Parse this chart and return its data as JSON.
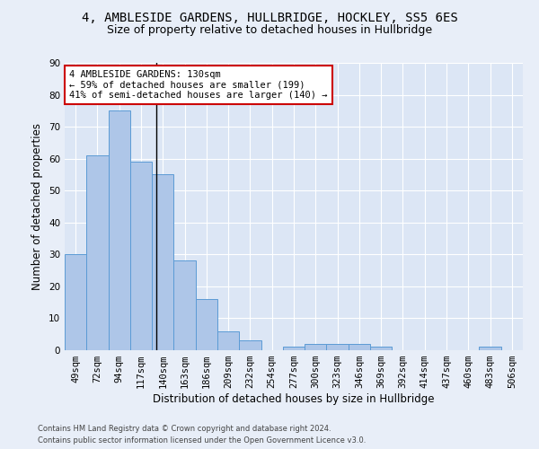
{
  "title": "4, AMBLESIDE GARDENS, HULLBRIDGE, HOCKLEY, SS5 6ES",
  "subtitle": "Size of property relative to detached houses in Hullbridge",
  "xlabel": "Distribution of detached houses by size in Hullbridge",
  "ylabel": "Number of detached properties",
  "categories": [
    "49sqm",
    "72sqm",
    "94sqm",
    "117sqm",
    "140sqm",
    "163sqm",
    "186sqm",
    "209sqm",
    "232sqm",
    "254sqm",
    "277sqm",
    "300sqm",
    "323sqm",
    "346sqm",
    "369sqm",
    "392sqm",
    "414sqm",
    "437sqm",
    "460sqm",
    "483sqm",
    "506sqm"
  ],
  "values": [
    30,
    61,
    75,
    59,
    55,
    28,
    16,
    6,
    3,
    0,
    1,
    2,
    2,
    2,
    1,
    0,
    0,
    0,
    0,
    1,
    0
  ],
  "bar_color": "#aec6e8",
  "bar_edge_color": "#5b9bd5",
  "ylim": [
    0,
    90
  ],
  "yticks": [
    0,
    10,
    20,
    30,
    40,
    50,
    60,
    70,
    80,
    90
  ],
  "property_label": "4 AMBLESIDE GARDENS: 130sqm",
  "pct_smaller": 59,
  "n_smaller": 199,
  "pct_larger_semi": 41,
  "n_larger_semi": 140,
  "annotation_box_color": "#ffffff",
  "annotation_box_edge": "#cc0000",
  "vline_x_index": 3.7,
  "footer_line1": "Contains HM Land Registry data © Crown copyright and database right 2024.",
  "footer_line2": "Contains public sector information licensed under the Open Government Licence v3.0.",
  "background_color": "#e8eef8",
  "plot_bg_color": "#dce6f5",
  "grid_color": "#ffffff",
  "title_fontsize": 10,
  "subtitle_fontsize": 9,
  "tick_fontsize": 7.5,
  "ylabel_fontsize": 8.5,
  "xlabel_fontsize": 8.5,
  "annotation_fontsize": 7.5,
  "footer_fontsize": 6.0
}
